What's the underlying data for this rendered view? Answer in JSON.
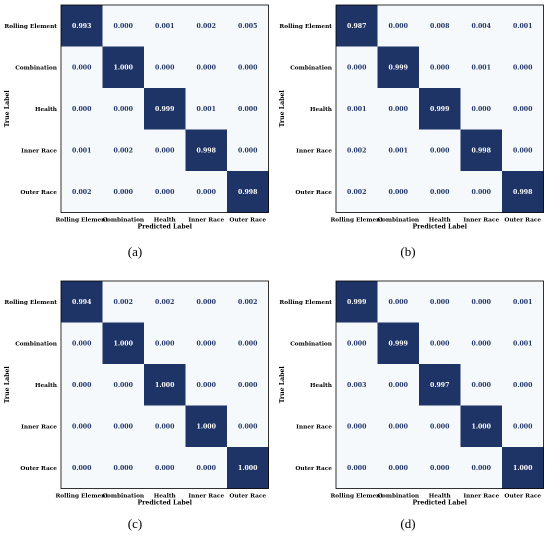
{
  "colors": {
    "diag": "#1f3466",
    "off": "#f6f9fc",
    "diag_text": "#ffffff",
    "off_text": "#1f3466",
    "border": "#000000"
  },
  "chart_data": [
    {
      "type": "heatmap",
      "caption": "(a)",
      "categories": [
        "Rolling Element",
        "Combination",
        "Health",
        "Inner Race",
        "Outer Race"
      ],
      "xlabel": "Predicted Label",
      "ylabel": "True Label",
      "values": [
        [
          "0.993",
          "0.000",
          "0.001",
          "0.002",
          "0.005"
        ],
        [
          "0.000",
          "1.000",
          "0.000",
          "0.000",
          "0.000"
        ],
        [
          "0.000",
          "0.000",
          "0.999",
          "0.001",
          "0.000"
        ],
        [
          "0.001",
          "0.002",
          "0.000",
          "0.998",
          "0.000"
        ],
        [
          "0.002",
          "0.000",
          "0.000",
          "0.000",
          "0.998"
        ]
      ]
    },
    {
      "type": "heatmap",
      "caption": "(b)",
      "categories": [
        "Rolling Element",
        "Combination",
        "Health",
        "Inner Race",
        "Outer Race"
      ],
      "xlabel": "Predicted Label",
      "ylabel": "True Label",
      "values": [
        [
          "0.987",
          "0.000",
          "0.008",
          "0.004",
          "0.001"
        ],
        [
          "0.000",
          "0.999",
          "0.000",
          "0.001",
          "0.000"
        ],
        [
          "0.001",
          "0.000",
          "0.999",
          "0.000",
          "0.000"
        ],
        [
          "0.002",
          "0.001",
          "0.000",
          "0.998",
          "0.000"
        ],
        [
          "0.002",
          "0.000",
          "0.000",
          "0.000",
          "0.998"
        ]
      ]
    },
    {
      "type": "heatmap",
      "caption": "(c)",
      "categories": [
        "Rolling Element",
        "Combination",
        "Health",
        "Inner Race",
        "Outer Race"
      ],
      "xlabel": "Predicted Label",
      "ylabel": "True Label",
      "values": [
        [
          "0.994",
          "0.002",
          "0.002",
          "0.000",
          "0.002"
        ],
        [
          "0.000",
          "1.000",
          "0.000",
          "0.000",
          "0.000"
        ],
        [
          "0.000",
          "0.000",
          "1.000",
          "0.000",
          "0.000"
        ],
        [
          "0.000",
          "0.000",
          "0.000",
          "1.000",
          "0.000"
        ],
        [
          "0.000",
          "0.000",
          "0.000",
          "0.000",
          "1.000"
        ]
      ]
    },
    {
      "type": "heatmap",
      "caption": "(d)",
      "categories": [
        "Rolling Element",
        "Combination",
        "Health",
        "Inner Race",
        "Outer Race"
      ],
      "xlabel": "Predicted Label",
      "ylabel": "True Label",
      "values": [
        [
          "0.999",
          "0.000",
          "0.000",
          "0.000",
          "0.001"
        ],
        [
          "0.000",
          "0.999",
          "0.000",
          "0.000",
          "0.001"
        ],
        [
          "0.003",
          "0.000",
          "0.997",
          "0.000",
          "0.000"
        ],
        [
          "0.000",
          "0.000",
          "0.000",
          "1.000",
          "0.000"
        ],
        [
          "0.000",
          "0.000",
          "0.000",
          "0.000",
          "1.000"
        ]
      ]
    }
  ]
}
